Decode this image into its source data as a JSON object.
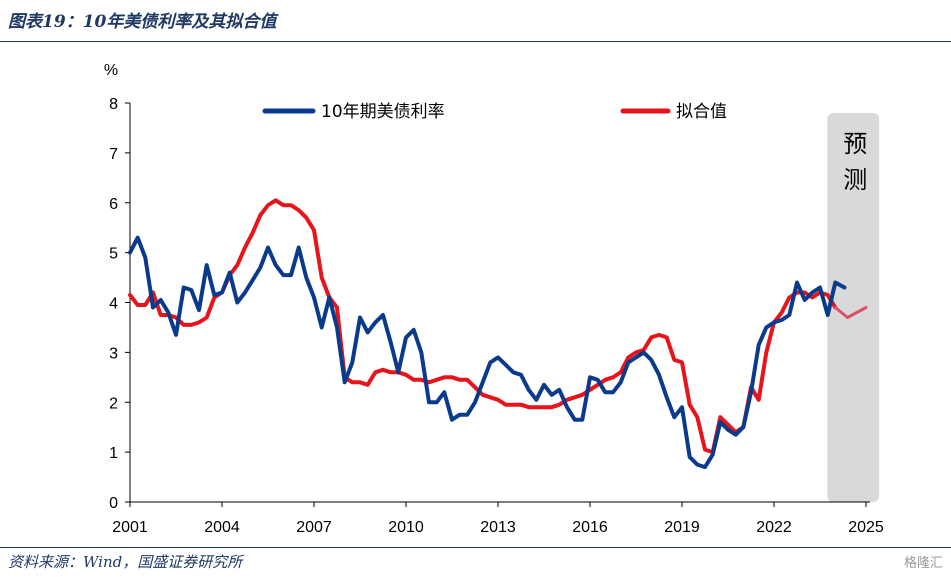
{
  "header": {
    "title": "图表19：10年美债利率及其拟合值"
  },
  "footer": {
    "source": "资料来源：Wind，国盛证券研究所",
    "watermark": "格隆汇"
  },
  "colors": {
    "series_actual": "#0a3a8c",
    "series_fitted": "#e8141b",
    "series_fitted_forecast": "#d9526a",
    "forecast_band": "#d9d9d9",
    "rule": "#1f3864"
  },
  "chart_data": {
    "type": "line",
    "title": "10年美债利率及其拟合值",
    "ylabel": "%",
    "xlabel": "",
    "ylim": [
      0,
      8
    ],
    "xlim": [
      2001,
      2025.3
    ],
    "yticks": [
      "0",
      "1",
      "2",
      "3",
      "4",
      "5",
      "6",
      "7",
      "8"
    ],
    "xticks": [
      "2001",
      "2004",
      "2007",
      "2010",
      "2013",
      "2016",
      "2019",
      "2022",
      "2025"
    ],
    "forecast_region": {
      "start": 2024.0,
      "end": 2025.3,
      "label": [
        "预",
        "测"
      ]
    },
    "legend": [
      "10年期美债利率",
      "拟合值"
    ],
    "series": [
      {
        "name": "10年期美债利率",
        "points": [
          [
            2001.0,
            5.0
          ],
          [
            2001.25,
            5.3
          ],
          [
            2001.5,
            4.9
          ],
          [
            2001.75,
            3.9
          ],
          [
            2002.0,
            4.05
          ],
          [
            2002.25,
            3.8
          ],
          [
            2002.5,
            3.35
          ],
          [
            2002.75,
            4.3
          ],
          [
            2003.0,
            4.25
          ],
          [
            2003.25,
            3.85
          ],
          [
            2003.5,
            4.75
          ],
          [
            2003.75,
            4.15
          ],
          [
            2004.0,
            4.2
          ],
          [
            2004.25,
            4.6
          ],
          [
            2004.5,
            4.0
          ],
          [
            2004.75,
            4.2
          ],
          [
            2005.0,
            4.45
          ],
          [
            2005.25,
            4.7
          ],
          [
            2005.5,
            5.1
          ],
          [
            2005.75,
            4.75
          ],
          [
            2006.0,
            4.55
          ],
          [
            2006.25,
            4.55
          ],
          [
            2006.5,
            5.1
          ],
          [
            2006.75,
            4.5
          ],
          [
            2007.0,
            4.1
          ],
          [
            2007.25,
            3.5
          ],
          [
            2007.5,
            4.1
          ],
          [
            2007.75,
            3.5
          ],
          [
            2008.0,
            2.4
          ],
          [
            2008.25,
            2.8
          ],
          [
            2008.5,
            3.7
          ],
          [
            2008.75,
            3.4
          ],
          [
            2009.0,
            3.6
          ],
          [
            2009.25,
            3.75
          ],
          [
            2009.5,
            3.2
          ],
          [
            2009.75,
            2.6
          ],
          [
            2010.0,
            3.3
          ],
          [
            2010.25,
            3.45
          ],
          [
            2010.5,
            3.0
          ],
          [
            2010.75,
            2.0
          ],
          [
            2011.0,
            2.0
          ],
          [
            2011.25,
            2.2
          ],
          [
            2011.5,
            1.65
          ],
          [
            2011.75,
            1.75
          ],
          [
            2012.0,
            1.75
          ],
          [
            2012.25,
            2.0
          ],
          [
            2012.5,
            2.4
          ],
          [
            2012.75,
            2.8
          ],
          [
            2013.0,
            2.9
          ],
          [
            2013.25,
            2.75
          ],
          [
            2013.5,
            2.6
          ],
          [
            2013.75,
            2.55
          ],
          [
            2014.0,
            2.25
          ],
          [
            2014.25,
            2.05
          ],
          [
            2014.5,
            2.35
          ],
          [
            2014.75,
            2.15
          ],
          [
            2015.0,
            2.25
          ],
          [
            2015.25,
            1.9
          ],
          [
            2015.5,
            1.65
          ],
          [
            2015.75,
            1.65
          ],
          [
            2016.0,
            2.5
          ],
          [
            2016.25,
            2.45
          ],
          [
            2016.5,
            2.2
          ],
          [
            2016.75,
            2.2
          ],
          [
            2017.0,
            2.4
          ],
          [
            2017.25,
            2.8
          ],
          [
            2017.5,
            2.9
          ],
          [
            2017.75,
            3.0
          ],
          [
            2018.0,
            2.85
          ],
          [
            2018.25,
            2.55
          ],
          [
            2018.5,
            2.1
          ],
          [
            2018.75,
            1.7
          ],
          [
            2019.0,
            1.9
          ],
          [
            2019.25,
            0.9
          ],
          [
            2019.5,
            0.75
          ],
          [
            2019.75,
            0.7
          ],
          [
            2020.0,
            0.95
          ],
          [
            2020.25,
            1.6
          ],
          [
            2020.5,
            1.45
          ],
          [
            2020.75,
            1.35
          ],
          [
            2021.0,
            1.5
          ],
          [
            2021.25,
            2.2
          ],
          [
            2021.5,
            3.15
          ],
          [
            2021.75,
            3.5
          ],
          [
            2022.0,
            3.6
          ],
          [
            2022.25,
            3.65
          ],
          [
            2022.5,
            3.75
          ],
          [
            2022.75,
            4.4
          ],
          [
            2023.0,
            4.05
          ],
          [
            2023.25,
            4.2
          ],
          [
            2023.5,
            4.3
          ],
          [
            2023.75,
            3.75
          ],
          [
            2024.0,
            4.4
          ],
          [
            2024.3,
            4.3
          ]
        ]
      },
      {
        "name": "拟合值",
        "points": [
          [
            2001.0,
            4.15
          ],
          [
            2001.25,
            3.95
          ],
          [
            2001.5,
            3.95
          ],
          [
            2001.75,
            4.2
          ],
          [
            2002.0,
            3.75
          ],
          [
            2002.25,
            3.75
          ],
          [
            2002.5,
            3.7
          ],
          [
            2002.75,
            3.55
          ],
          [
            2003.0,
            3.55
          ],
          [
            2003.25,
            3.6
          ],
          [
            2003.5,
            3.7
          ],
          [
            2003.75,
            4.1
          ],
          [
            2004.0,
            4.2
          ],
          [
            2004.25,
            4.55
          ],
          [
            2004.5,
            4.75
          ],
          [
            2004.75,
            5.1
          ],
          [
            2005.0,
            5.4
          ],
          [
            2005.25,
            5.75
          ],
          [
            2005.5,
            5.95
          ],
          [
            2005.75,
            6.05
          ],
          [
            2006.0,
            5.95
          ],
          [
            2006.25,
            5.95
          ],
          [
            2006.5,
            5.85
          ],
          [
            2006.75,
            5.7
          ],
          [
            2007.0,
            5.45
          ],
          [
            2007.25,
            4.5
          ],
          [
            2007.5,
            4.1
          ],
          [
            2007.75,
            3.9
          ],
          [
            2008.0,
            2.5
          ],
          [
            2008.25,
            2.4
          ],
          [
            2008.5,
            2.4
          ],
          [
            2008.75,
            2.35
          ],
          [
            2009.0,
            2.6
          ],
          [
            2009.25,
            2.65
          ],
          [
            2009.5,
            2.6
          ],
          [
            2009.75,
            2.6
          ],
          [
            2010.0,
            2.55
          ],
          [
            2010.25,
            2.45
          ],
          [
            2010.5,
            2.45
          ],
          [
            2010.75,
            2.4
          ],
          [
            2011.0,
            2.45
          ],
          [
            2011.25,
            2.5
          ],
          [
            2011.5,
            2.5
          ],
          [
            2011.75,
            2.45
          ],
          [
            2012.0,
            2.45
          ],
          [
            2012.25,
            2.3
          ],
          [
            2012.5,
            2.15
          ],
          [
            2012.75,
            2.1
          ],
          [
            2013.0,
            2.05
          ],
          [
            2013.25,
            1.95
          ],
          [
            2013.5,
            1.95
          ],
          [
            2013.75,
            1.95
          ],
          [
            2014.0,
            1.9
          ],
          [
            2014.25,
            1.9
          ],
          [
            2014.5,
            1.9
          ],
          [
            2014.75,
            1.9
          ],
          [
            2015.0,
            1.95
          ],
          [
            2015.25,
            2.05
          ],
          [
            2015.5,
            2.1
          ],
          [
            2015.75,
            2.15
          ],
          [
            2016.0,
            2.25
          ],
          [
            2016.25,
            2.35
          ],
          [
            2016.5,
            2.45
          ],
          [
            2016.75,
            2.5
          ],
          [
            2017.0,
            2.6
          ],
          [
            2017.25,
            2.9
          ],
          [
            2017.5,
            3.0
          ],
          [
            2017.75,
            3.05
          ],
          [
            2018.0,
            3.3
          ],
          [
            2018.25,
            3.35
          ],
          [
            2018.5,
            3.3
          ],
          [
            2018.75,
            2.85
          ],
          [
            2019.0,
            2.8
          ],
          [
            2019.25,
            1.95
          ],
          [
            2019.5,
            1.7
          ],
          [
            2019.75,
            1.05
          ],
          [
            2020.0,
            1.0
          ],
          [
            2020.25,
            1.7
          ],
          [
            2020.5,
            1.55
          ],
          [
            2020.75,
            1.4
          ],
          [
            2021.0,
            1.5
          ],
          [
            2021.25,
            2.3
          ],
          [
            2021.5,
            2.05
          ],
          [
            2021.75,
            3.0
          ],
          [
            2022.0,
            3.6
          ],
          [
            2022.25,
            3.8
          ],
          [
            2022.5,
            4.1
          ],
          [
            2022.75,
            4.2
          ],
          [
            2023.0,
            4.2
          ],
          [
            2023.25,
            4.1
          ],
          [
            2023.5,
            4.2
          ],
          [
            2023.75,
            4.15
          ],
          [
            2024.0,
            3.9
          ],
          [
            2024.4,
            3.7
          ],
          [
            2025.0,
            3.9
          ]
        ],
        "forecast_from": 2024.0
      }
    ]
  }
}
